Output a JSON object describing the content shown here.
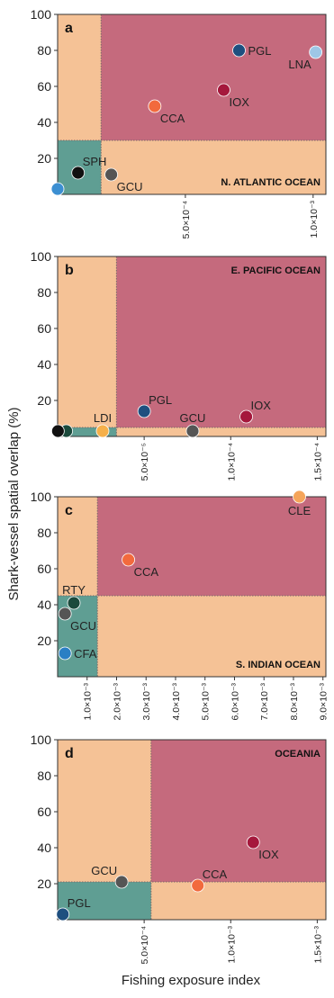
{
  "figure": {
    "ylabel": "Shark-vessel spatial overlap (%)",
    "xlabel": "Fishing exposure index"
  },
  "colors": {
    "low_low": "#5f9e93",
    "mixed": "#f5c296",
    "high_high": "#c56a7d",
    "divider": "#7a6a6a"
  },
  "chart_data": [
    {
      "type": "scatter",
      "panel_letter": "a",
      "region": "N. ATLANTIC OCEAN",
      "region_position": "bottom-right",
      "xlim": [
        0,
        0.00105
      ],
      "ylim": [
        0,
        100
      ],
      "x_threshold": 0.00017,
      "y_threshold": 30,
      "x_ticks": [
        0.0005,
        0.001
      ],
      "x_tick_labels": [
        "5.0×10⁻⁴",
        "1.0×10⁻³"
      ],
      "y_ticks": [
        20,
        40,
        60,
        80,
        100
      ],
      "y_tick_labels": [
        "20",
        "40",
        "60",
        "80",
        "100"
      ],
      "points": [
        {
          "label": "PGL",
          "x": 0.00071,
          "y": 80,
          "color": "#1e4f7f",
          "label_side": "right"
        },
        {
          "label": "LNA",
          "x": 0.00101,
          "y": 79,
          "color": "#9ec6e6",
          "label_side": "left-below"
        },
        {
          "label": "IOX",
          "x": 0.00065,
          "y": 58,
          "color": "#a5183c",
          "label_side": "right-below"
        },
        {
          "label": "CCA",
          "x": 0.00038,
          "y": 49,
          "color": "#f26a3d",
          "label_side": "right-below"
        },
        {
          "label": "SPH",
          "x": 8e-05,
          "y": 12,
          "color": "#111111",
          "label_side": "right-above"
        },
        {
          "label": "GCU",
          "x": 0.00021,
          "y": 11,
          "color": "#555555",
          "label_side": "right-below"
        },
        {
          "label": "",
          "x": 0.0,
          "y": 3,
          "color": "#3c8fd2",
          "label_side": "none"
        }
      ]
    },
    {
      "type": "scatter",
      "panel_letter": "b",
      "region": "E. PACIFIC OCEAN",
      "region_position": "top-right",
      "xlim": [
        0,
        0.000155
      ],
      "ylim": [
        0,
        100
      ],
      "x_threshold": 3.4e-05,
      "y_threshold": 5,
      "x_ticks": [
        5e-05,
        0.0001,
        0.00015
      ],
      "x_tick_labels": [
        "5.0×10⁻⁵",
        "1.0×10⁻⁴",
        "1.5×10⁻⁴"
      ],
      "y_ticks": [
        20,
        40,
        60,
        80,
        100
      ],
      "y_tick_labels": [
        "20",
        "40",
        "60",
        "80",
        "100"
      ],
      "points": [
        {
          "label": "PGL",
          "x": 5e-05,
          "y": 14,
          "color": "#1e4f7f",
          "label_side": "right-above"
        },
        {
          "label": "IOX",
          "x": 0.000109,
          "y": 11,
          "color": "#a5183c",
          "label_side": "right-above"
        },
        {
          "label": "GCU",
          "x": 7.8e-05,
          "y": 3,
          "color": "#555555",
          "label_side": "above"
        },
        {
          "label": "LDI",
          "x": 2.6e-05,
          "y": 3,
          "color": "#f6b04a",
          "label_side": "above"
        },
        {
          "label": "",
          "x": 5e-06,
          "y": 3,
          "color": "#1b4a3c",
          "label_side": "none"
        },
        {
          "label": "",
          "x": 2e-07,
          "y": 3,
          "color": "#111111",
          "label_side": "none"
        }
      ]
    },
    {
      "type": "scatter",
      "panel_letter": "c",
      "region": "S. INDIAN OCEAN",
      "region_position": "bottom-right",
      "xlim": [
        0,
        0.0091
      ],
      "ylim": [
        0,
        100
      ],
      "x_threshold": 0.00135,
      "y_threshold": 45,
      "x_ticks": [
        0.001,
        0.002,
        0.003,
        0.004,
        0.005,
        0.006,
        0.007,
        0.008,
        0.009
      ],
      "x_tick_labels": [
        "1.0×10⁻³",
        "2.0×10⁻³",
        "3.0×10⁻³",
        "4.0×10⁻³",
        "5.0×10⁻³",
        "6.0×10⁻³",
        "7.0×10⁻³",
        "8.0×10⁻³",
        "9.0×10⁻³"
      ],
      "y_ticks": [
        20,
        40,
        60,
        80,
        100
      ],
      "y_tick_labels": [
        "20",
        "40",
        "60",
        "80",
        "100"
      ],
      "points": [
        {
          "label": "CLE",
          "x": 0.0082,
          "y": 100,
          "color": "#f5a55a",
          "label_side": "below"
        },
        {
          "label": "CCA",
          "x": 0.0024,
          "y": 65,
          "color": "#f26a3d",
          "label_side": "right-below"
        },
        {
          "label": "RTY",
          "x": 0.00055,
          "y": 41,
          "color": "#1b4a3c",
          "label_side": "above"
        },
        {
          "label": "GCU",
          "x": 0.00025,
          "y": 35,
          "color": "#555555",
          "label_side": "right-below"
        },
        {
          "label": "CFA",
          "x": 0.00025,
          "y": 13,
          "color": "#2a7fc4",
          "label_side": "right"
        }
      ]
    },
    {
      "type": "scatter",
      "panel_letter": "d",
      "region": "OCEANIA",
      "region_position": "top-right",
      "xlim": [
        0,
        0.00155
      ],
      "ylim": [
        0,
        100
      ],
      "x_threshold": 0.00054,
      "y_threshold": 21,
      "x_ticks": [
        0.0005,
        0.001,
        0.0015
      ],
      "x_tick_labels": [
        "5.0×10⁻⁴",
        "1.0×10⁻³",
        "1.5×10⁻³"
      ],
      "y_ticks": [
        20,
        40,
        60,
        80,
        100
      ],
      "y_tick_labels": [
        "20",
        "40",
        "60",
        "80",
        "100"
      ],
      "points": [
        {
          "label": "IOX",
          "x": 0.00113,
          "y": 43,
          "color": "#a5183c",
          "label_side": "right-below"
        },
        {
          "label": "CCA",
          "x": 0.00081,
          "y": 19,
          "color": "#f26a3d",
          "label_side": "right-above"
        },
        {
          "label": "GCU",
          "x": 0.00037,
          "y": 21,
          "color": "#555555",
          "label_side": "left-above"
        },
        {
          "label": "PGL",
          "x": 3e-05,
          "y": 3,
          "color": "#1e4f7f",
          "label_side": "right-above"
        }
      ]
    }
  ]
}
